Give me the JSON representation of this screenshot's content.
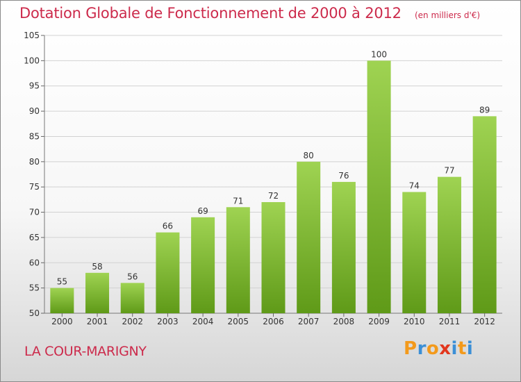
{
  "header": {
    "title": "Dotation Globale de Fonctionnement de 2000 à 2012",
    "unit": "(en milliers d'€)"
  },
  "footer": {
    "commune": "LA COUR-MARIGNY",
    "logo": "Proxiti"
  },
  "colors": {
    "title": "#cc2a4b",
    "bar_top": "#9fd352",
    "bar_bottom": "#5f9a18",
    "logo_letters": [
      "#f39a1c",
      "#3b8fd6",
      "#f39a1c",
      "#e2371e",
      "#3b8fd6",
      "#f39a1c",
      "#3b8fd6"
    ]
  },
  "chart_data": {
    "type": "bar",
    "categories": [
      "2000",
      "2001",
      "2002",
      "2003",
      "2004",
      "2005",
      "2006",
      "2007",
      "2008",
      "2009",
      "2010",
      "2011",
      "2012"
    ],
    "values": [
      55,
      58,
      56,
      66,
      69,
      71,
      72,
      80,
      76,
      100,
      74,
      77,
      89
    ],
    "ylim": [
      50,
      105
    ],
    "yticks": [
      50,
      55,
      60,
      65,
      70,
      75,
      80,
      85,
      90,
      95,
      100,
      105
    ],
    "grid": true,
    "data_labels": true
  }
}
